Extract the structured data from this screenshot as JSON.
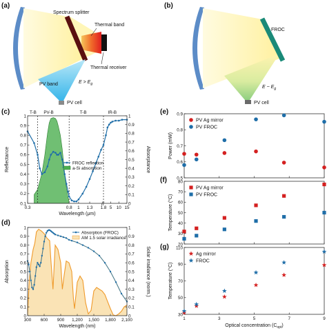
{
  "panels": {
    "a": {
      "label": "(a)",
      "texts": {
        "spectrum_splitter": "Spectrum splitter",
        "thermal_band": "Thermal band",
        "thermal_receiver": "Thermal receiver",
        "pv_band": "PV band",
        "pv_cell": "PV cell",
        "cond_main": "E > E",
        "cond_sub": "g"
      }
    },
    "b": {
      "label": "(b)",
      "texts": {
        "froc": "FROC",
        "pv_cell": "PV cell",
        "cond_main": "E ~ E",
        "cond_sub": "g"
      }
    },
    "c": {
      "label": "(c)"
    },
    "d": {
      "label": "(d)"
    },
    "e": {
      "label": "(e)"
    },
    "f": {
      "label": "(f)"
    },
    "g": {
      "label": "(g)"
    }
  },
  "colors": {
    "mirror": "#4a7fc1",
    "beam": "#fff6b0",
    "splitter": "#5a1010",
    "froc": "#1a8a78",
    "pv_band_beam": "#59c4ee",
    "pv_cell": "#5a9a4a",
    "red": "#d42020",
    "blue": "#1f6ea8",
    "green_fill": "#4caf50",
    "orange": "#ef9a2a",
    "solar_fill": "#fae3b5"
  },
  "chart_data": [
    {
      "id": "c",
      "type": "line",
      "xlabel": "Wavelength (μm)",
      "ylabel_left": "Reflectance",
      "ylabel_right": "Absorptance",
      "x_ticks": [
        "0.3",
        "0.8",
        "1",
        "1.3",
        "1.8",
        "5",
        "10",
        "15"
      ],
      "y_ticks": [
        "0.1",
        "0.2",
        "0.3",
        "0.4",
        "0.5",
        "0.6",
        "0.7",
        "0.8",
        "0.9",
        "1"
      ],
      "y2_ticks": [
        "0",
        "0.1",
        "0.2",
        "0.3",
        "0.4",
        "0.5",
        "0.6",
        "0.7",
        "0.8",
        "0.9",
        "1"
      ],
      "ylim": [
        0.1,
        1.0
      ],
      "region_labels": [
        "T-B",
        "PV-B",
        "T-B",
        "IR-B"
      ],
      "legend": [
        "FROC reflection",
        "a-Si absorption"
      ],
      "series": [
        {
          "name": "FROC reflection",
          "x": [
            0.3,
            0.35,
            0.38,
            0.4,
            0.42,
            0.45,
            0.48,
            0.5,
            0.52,
            0.55,
            0.58,
            0.6,
            0.62,
            0.65,
            0.68,
            0.7,
            0.72,
            0.75,
            0.78,
            0.8,
            0.85,
            0.9,
            0.95,
            1.0,
            1.1,
            1.2,
            1.3,
            1.4,
            1.5,
            1.6,
            1.7,
            1.8,
            2,
            3,
            4,
            5,
            6,
            8,
            10,
            12,
            15
          ],
          "y": [
            0.84,
            0.72,
            0.6,
            0.46,
            0.4,
            0.42,
            0.48,
            0.55,
            0.6,
            0.63,
            0.62,
            0.6,
            0.6,
            0.62,
            0.55,
            0.47,
            0.4,
            0.3,
            0.22,
            0.17,
            0.13,
            0.12,
            0.12,
            0.14,
            0.2,
            0.27,
            0.35,
            0.43,
            0.51,
            0.58,
            0.65,
            0.7,
            0.8,
            0.88,
            0.91,
            0.93,
            0.94,
            0.95,
            0.95,
            0.96,
            0.96
          ]
        },
        {
          "name": "a-Si absorption",
          "x": [
            0.35,
            0.38,
            0.42,
            0.45,
            0.48,
            0.5,
            0.52,
            0.55,
            0.58,
            0.6,
            0.62,
            0.65,
            0.68,
            0.7,
            0.72,
            0.75,
            0.78,
            0.8
          ],
          "y": [
            0.1,
            0.16,
            0.34,
            0.55,
            0.8,
            0.92,
            0.97,
            0.98,
            0.97,
            0.94,
            0.88,
            0.78,
            0.62,
            0.48,
            0.34,
            0.18,
            0.07,
            0.02
          ]
        }
      ]
    },
    {
      "id": "d",
      "type": "line",
      "xlabel": "Wavelength (nm)",
      "ylabel_left": "Absorption",
      "ylabel_right": "Solar irradiance (norm.)",
      "xlim": [
        300,
        2100
      ],
      "x_ticks": [
        "300",
        "600",
        "900",
        "1,200",
        "1,500",
        "1,800",
        "2,100"
      ],
      "y_ticks": [
        "0",
        "0.1",
        "0.2",
        "0.3",
        "0.4",
        "0.5",
        "0.6",
        "0.7",
        "0.8",
        "0.9",
        "1"
      ],
      "ylim": [
        0,
        1
      ],
      "legend": [
        "Absorption (FROC)",
        "AM 1.5 solar irradiance"
      ],
      "series": [
        {
          "name": "Absorption (FROC)",
          "x": [
            300,
            320,
            340,
            360,
            380,
            400,
            420,
            440,
            460,
            480,
            500,
            520,
            540,
            560,
            580,
            600,
            620,
            640,
            660,
            680,
            700,
            720,
            740,
            760,
            780,
            800,
            850,
            900,
            950,
            1000,
            1050,
            1100,
            1200,
            1300,
            1400,
            1500,
            1600,
            1700,
            1800,
            1900,
            2000,
            2100
          ],
          "y": [
            0.62,
            0.58,
            0.5,
            0.4,
            0.32,
            0.3,
            0.35,
            0.45,
            0.55,
            0.6,
            0.58,
            0.56,
            0.6,
            0.68,
            0.76,
            0.84,
            0.9,
            0.94,
            0.96,
            0.97,
            0.97,
            0.96,
            0.95,
            0.94,
            0.93,
            0.92,
            0.91,
            0.9,
            0.89,
            0.88,
            0.86,
            0.85,
            0.83,
            0.8,
            0.77,
            0.73,
            0.68,
            0.6,
            0.5,
            0.38,
            0.25,
            0.16
          ]
        },
        {
          "name": "AM 1.5 solar irradiance",
          "x": [
            300,
            330,
            360,
            400,
            430,
            460,
            500,
            550,
            600,
            650,
            700,
            720,
            760,
            800,
            850,
            900,
            930,
            960,
            1000,
            1050,
            1100,
            1130,
            1150,
            1200,
            1250,
            1300,
            1350,
            1400,
            1450,
            1500,
            1550,
            1600,
            1650,
            1700,
            1750,
            1800,
            1850,
            1900,
            1950,
            2000,
            2050,
            2100
          ],
          "y": [
            0.02,
            0.4,
            0.6,
            0.75,
            0.82,
            0.95,
            0.98,
            0.96,
            0.93,
            0.88,
            0.85,
            0.65,
            0.3,
            0.8,
            0.75,
            0.6,
            0.3,
            0.45,
            0.62,
            0.6,
            0.5,
            0.2,
            0.08,
            0.38,
            0.45,
            0.4,
            0.15,
            0.02,
            0.06,
            0.28,
            0.32,
            0.3,
            0.28,
            0.24,
            0.16,
            0.08,
            0.01,
            0.0,
            0.02,
            0.05,
            0.1,
            0.12
          ]
        }
      ]
    },
    {
      "id": "e",
      "type": "scatter",
      "ylabel": "Power (mW)",
      "xlim": [
        1,
        9
      ],
      "ylim": [
        0.5,
        0.9
      ],
      "y_ticks": [
        "0.5",
        "0.6",
        "0.7",
        "0.8",
        "0.9"
      ],
      "legend": [
        "PV Ag mirror",
        "PV FROC"
      ],
      "series": [
        {
          "name": "PV Ag mirror",
          "x": [
            1,
            1.7,
            3.3,
            5.1,
            6.7,
            9
          ],
          "y": [
            0.65,
            0.645,
            0.655,
            0.665,
            0.595,
            0.565
          ]
        },
        {
          "name": "PV FROC",
          "x": [
            1,
            1.7,
            3.3,
            5.1,
            6.7,
            9
          ],
          "y": [
            0.58,
            0.615,
            0.735,
            0.865,
            0.89,
            0.85
          ]
        }
      ]
    },
    {
      "id": "f",
      "type": "scatter",
      "ylabel": "Temperature (°C)",
      "xlim": [
        1,
        9
      ],
      "ylim": [
        20,
        80
      ],
      "y_ticks": [
        "20",
        "30",
        "40",
        "50",
        "60",
        "70",
        "80"
      ],
      "legend": [
        "PV Ag mirror",
        "PV FROC"
      ],
      "series": [
        {
          "name": "PV Ag mirror",
          "x": [
            1,
            1.7,
            3.3,
            5.1,
            6.7,
            9
          ],
          "y": [
            32,
            35,
            45,
            57,
            66,
            77
          ]
        },
        {
          "name": "PV FROC",
          "x": [
            1,
            1.7,
            3.3,
            5.1,
            6.7,
            9
          ],
          "y": [
            25,
            28,
            34,
            42,
            46,
            50
          ]
        }
      ]
    },
    {
      "id": "g",
      "type": "scatter",
      "xlabel_main": "Optical concentration (C",
      "xlabel_sub": "opt",
      "xlabel_end": ")",
      "ylabel": "Temperature (°C)",
      "xlim": [
        1,
        9
      ],
      "x_ticks": [
        "1",
        "3",
        "5",
        "7",
        "9"
      ],
      "ylim": [
        30,
        110
      ],
      "y_ticks": [
        "30",
        "50",
        "70",
        "90",
        "110"
      ],
      "legend": [
        "Ag mirror",
        "FROC"
      ],
      "series": [
        {
          "name": "Ag mirror",
          "x": [
            1,
            1.7,
            3.3,
            5.1,
            6.7,
            9
          ],
          "y": [
            32,
            40,
            51,
            65,
            77,
            89
          ]
        },
        {
          "name": "FROC",
          "x": [
            1,
            1.7,
            3.3,
            5.1,
            6.7,
            9
          ],
          "y": [
            34,
            42,
            58,
            80,
            92,
            105
          ]
        }
      ]
    }
  ]
}
